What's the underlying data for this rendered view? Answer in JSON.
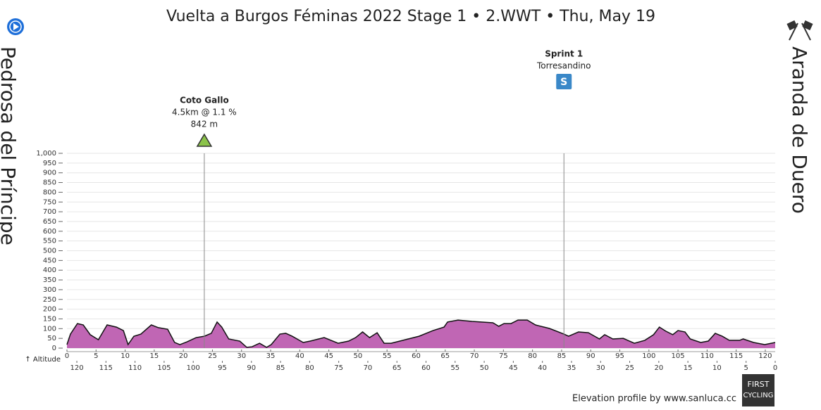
{
  "chart_data": {
    "type": "area",
    "title": "Vuelta a Burgos Féminas 2022 Stage 1 • 2.WWT • Thu, May 19",
    "start": "Pedrosa del Príncipe",
    "finish": "Aranda de Duero",
    "y_label": "↑ Altitude",
    "credit": "Elevation profile by www.sanluca.cc",
    "logo": [
      "FIRST",
      "CYCLING"
    ],
    "color": "#c066b4",
    "grid": true,
    "xlim": [
      0,
      121.7
    ],
    "xticks": [
      0,
      5,
      10,
      15,
      20,
      25,
      30,
      35,
      40,
      45,
      50,
      55,
      60,
      65,
      70,
      75,
      80,
      85,
      90,
      95,
      100,
      105,
      110,
      115,
      120
    ],
    "x2lim": [
      121.7,
      0
    ],
    "x2ticks": [
      120,
      115,
      110,
      105,
      100,
      95,
      90,
      85,
      80,
      75,
      70,
      65,
      60,
      55,
      50,
      45,
      40,
      35,
      30,
      25,
      20,
      15,
      10,
      5,
      0
    ],
    "ylim": [
      0,
      1000
    ],
    "yticks": [
      0,
      50,
      100,
      150,
      200,
      250,
      300,
      350,
      400,
      450,
      500,
      550,
      600,
      650,
      700,
      750,
      800,
      850,
      900,
      950,
      {
        "value": 1000,
        "label": "1,000"
      }
    ],
    "x": [
      0,
      0.6,
      1.8,
      2.8,
      4,
      5.4,
      6.9,
      8.5,
      9.7,
      10.5,
      11.5,
      12.7,
      14.5,
      15.7,
      17.3,
      18.5,
      19.4,
      20.6,
      22.2,
      23.6,
      24.8,
      25.8,
      26.6,
      27.8,
      29.7,
      30.9,
      31.8,
      33.1,
      34.3,
      35.1,
      36.6,
      37.6,
      38.7,
      40.6,
      41.8,
      44.2,
      46.6,
      48.4,
      49.6,
      50.8,
      52,
      53.3,
      54.5,
      55.7,
      58.1,
      60.5,
      62.9,
      64.8,
      65.4,
      67.2,
      69.6,
      73.2,
      74.2,
      75.1,
      76.3,
      77.5,
      79.1,
      80.5,
      82.9,
      85.4,
      86.2,
      87.9,
      89.6,
      91.5,
      92.4,
      93.8,
      95.6,
      97.5,
      99.3,
      100.8,
      101.8,
      102.9,
      104.1,
      105,
      106.2,
      107.1,
      108.9,
      110.2,
      111.4,
      112.6,
      113.8,
      115.6,
      116.2,
      118,
      119.9,
      121.7
    ],
    "values": [
      18,
      72,
      126,
      119,
      69,
      43,
      119,
      108,
      90,
      18,
      61,
      72,
      119,
      105,
      97,
      29,
      18,
      32,
      54,
      61,
      76,
      134,
      108,
      47,
      36,
      4,
      7,
      25,
      4,
      18,
      72,
      76,
      61,
      29,
      36,
      54,
      25,
      36,
      54,
      83,
      54,
      79,
      25,
      25,
      43,
      61,
      90,
      108,
      134,
      144,
      137,
      130,
      112,
      126,
      126,
      144,
      144,
      119,
      101,
      72,
      61,
      83,
      79,
      47,
      69,
      47,
      50,
      25,
      40,
      69,
      108,
      87,
      69,
      90,
      83,
      47,
      29,
      36,
      76,
      61,
      40,
      40,
      47,
      29,
      18,
      29
    ],
    "annotations": [
      {
        "x": 23.6,
        "lines": [
          "Coto Gallo",
          "4.5km @ 1.1 %",
          "842 m"
        ]
      },
      {
        "x": 85.4,
        "lines": [
          "Sprint 1",
          "Torresandino"
        ],
        "icon": "S"
      }
    ]
  }
}
